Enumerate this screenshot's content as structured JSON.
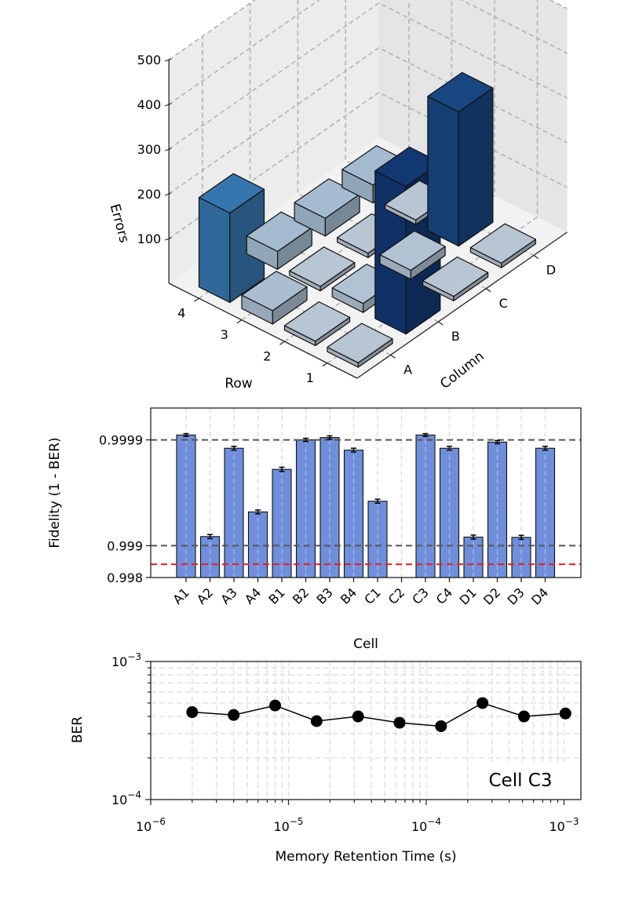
{
  "chart_data": [
    {
      "type": "bar3d",
      "zlabel": "Errors",
      "xlabel": "Row",
      "ylabel": "Column",
      "rows": [
        "1",
        "2",
        "3",
        "4"
      ],
      "columns": [
        "A",
        "B",
        "C",
        "D"
      ],
      "zticks": [
        "100",
        "200",
        "300",
        "400",
        "500"
      ],
      "zlim": [
        0,
        500
      ],
      "values": {
        "1": {
          "A": 10,
          "B": 330,
          "C": 10,
          "D": 10
        },
        "2": {
          "A": 10,
          "B": 20,
          "C": 20,
          "D": 300
        },
        "3": {
          "A": 30,
          "B": 10,
          "C": 10,
          "D": 10
        },
        "4": {
          "A": 200,
          "B": 40,
          "C": 40,
          "D": 40
        }
      },
      "grid": true
    },
    {
      "type": "bar",
      "ylabel": "Fidelity (1 - BER)",
      "xlabel": "Cell",
      "yscale": "-log10(1-F)",
      "ylim": [
        0.998,
        0.99995
      ],
      "yticks": [
        "0.998",
        "0.999",
        "0.9999"
      ],
      "categories": [
        "A1",
        "A2",
        "A3",
        "A4",
        "B1",
        "B2",
        "B3",
        "B4",
        "C1",
        "C2",
        "C3",
        "C4",
        "D1",
        "D2",
        "D3",
        "D4"
      ],
      "values": [
        0.99991,
        0.99918,
        0.99988,
        0.99952,
        0.99981,
        0.9999,
        0.999905,
        0.999875,
        0.99962,
        null,
        0.99991,
        0.99988,
        0.99917,
        0.999895,
        0.999165,
        0.99988
      ],
      "errors": [
        5e-07,
        1.5e-05,
        2e-06,
        8e-06,
        4e-06,
        1e-06,
        1e-06,
        2e-06,
        7e-06,
        null,
        5e-07,
        2e-06,
        1.5e-05,
        1e-06,
        1.5e-05,
        2e-06
      ],
      "reference_lines": [
        0.9999,
        0.999
      ],
      "threshold_line": 0.9985,
      "grid": true
    },
    {
      "type": "line",
      "xscale": "log",
      "yscale": "log",
      "xlabel": "Memory Retention Time (s)",
      "ylabel": "BER",
      "xlim": [
        1e-06,
        0.0013
      ],
      "ylim": [
        0.0001,
        0.001
      ],
      "xticks": [
        {
          "base": "10",
          "exp": "−6"
        },
        {
          "base": "10",
          "exp": "−5"
        },
        {
          "base": "10",
          "exp": "−4"
        },
        {
          "base": "10",
          "exp": "−3"
        }
      ],
      "yticks": [
        {
          "base": "10",
          "exp": "−4"
        },
        {
          "base": "10",
          "exp": "−3"
        }
      ],
      "x": [
        2e-06,
        4e-06,
        8e-06,
        1.6e-05,
        3.2e-05,
        6.4e-05,
        0.000128,
        0.000256,
        0.000512,
        0.001024
      ],
      "y": [
        0.00043,
        0.00041,
        0.00048,
        0.00037,
        0.0004,
        0.00036,
        0.00034,
        0.0005,
        0.0004,
        0.00042
      ],
      "annotation": "Cell C3",
      "grid": true
    }
  ]
}
